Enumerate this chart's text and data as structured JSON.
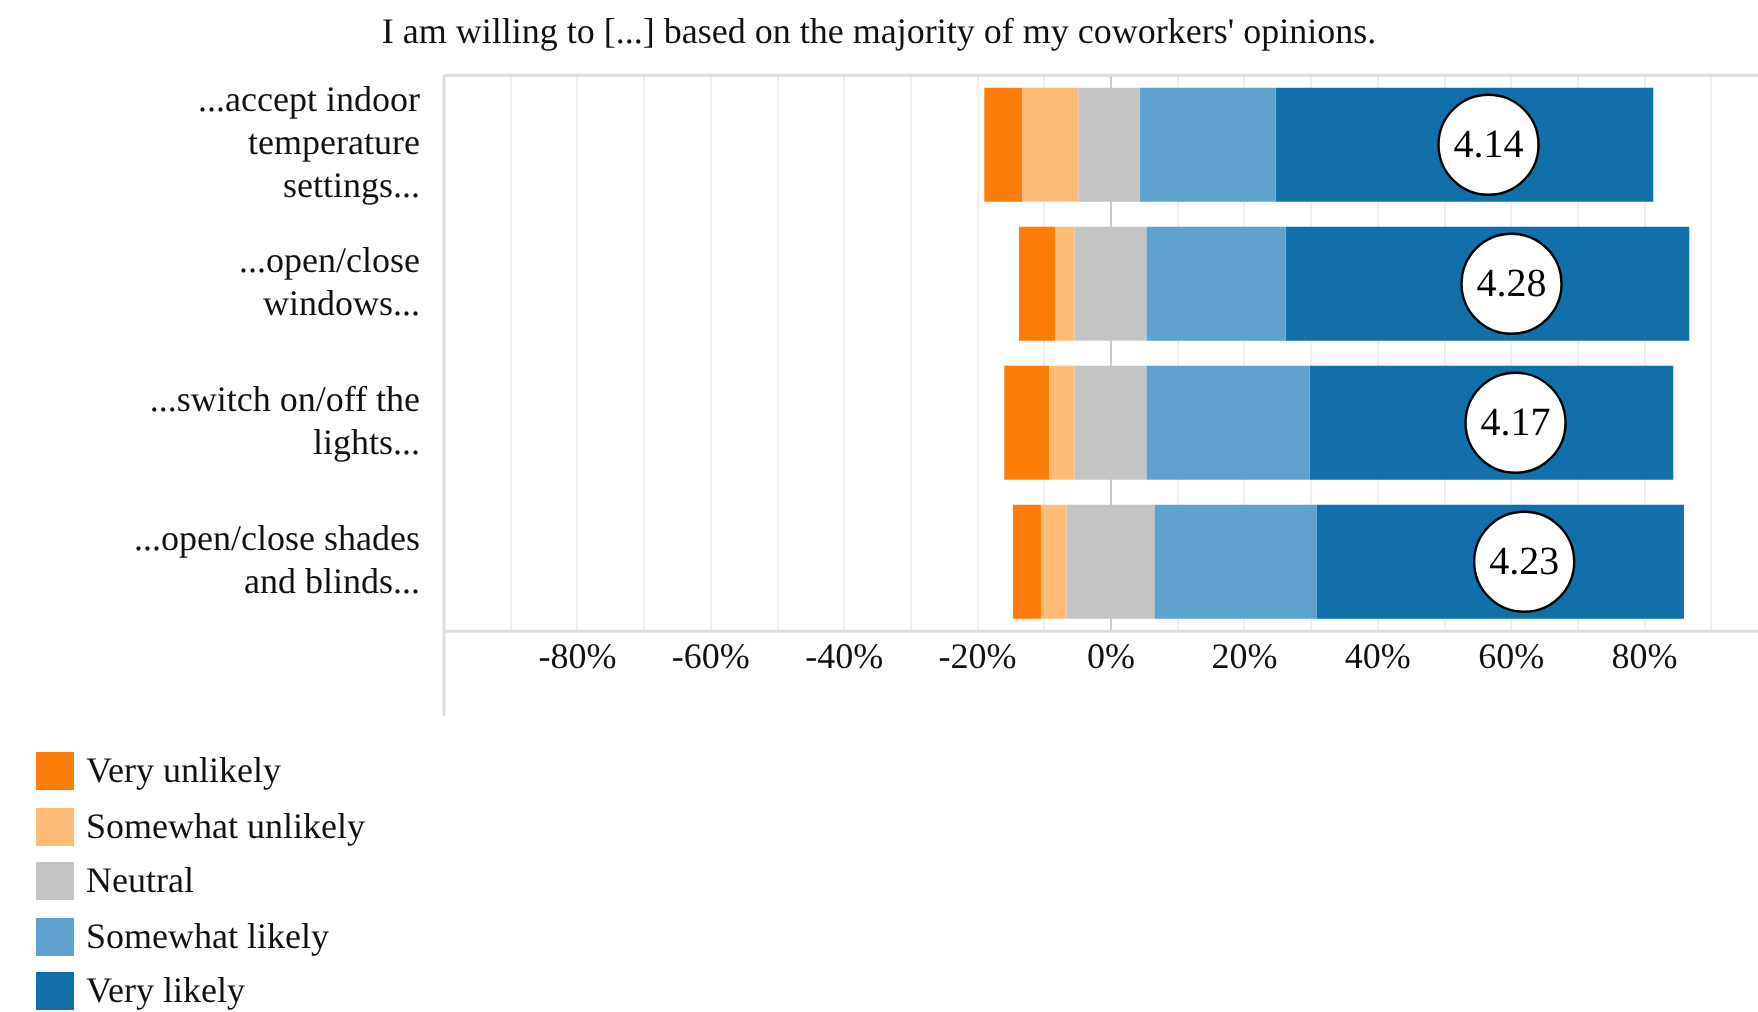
{
  "chart_data": {
    "type": "bar",
    "orientation": "horizontal",
    "title": "I am willing to [...] based on the majority of my coworkers' opinions.",
    "categories": [
      "...accept indoor temperature settings...",
      "...open/close windows...",
      "...switch on/off the lights...",
      "...open/close shades and blinds..."
    ],
    "series": [
      {
        "name": "Very unlikely",
        "color": "#fc7d0b",
        "base": [
          -19.0,
          -13.8,
          -16.0,
          -14.7
        ],
        "values": [
          5.7,
          5.4,
          6.7,
          4.2
        ]
      },
      {
        "name": "Somewhat unlikely",
        "color": "#ffbc79",
        "base": [
          -13.3,
          -8.4,
          -9.3,
          -10.5
        ],
        "values": [
          8.4,
          2.9,
          3.8,
          3.8
        ]
      },
      {
        "name": "Neutral",
        "color": "#c4c4c4",
        "base": [
          -4.9,
          -5.5,
          -5.5,
          -6.7
        ],
        "values": [
          9.2,
          10.8,
          10.8,
          13.2
        ]
      },
      {
        "name": "Somewhat likely",
        "color": "#5fa2ce",
        "base": [
          4.3,
          5.3,
          5.3,
          6.5
        ],
        "values": [
          20.4,
          20.9,
          24.5,
          24.3
        ]
      },
      {
        "name": "Very likely",
        "color": "#1170aa",
        "base": [
          24.7,
          26.2,
          29.8,
          30.8
        ],
        "values": [
          56.6,
          60.5,
          54.5,
          55.1
        ]
      }
    ],
    "xlim": [
      -100,
      97
    ],
    "xticks": [
      {
        "value": -90,
        "label": null
      },
      {
        "value": -80,
        "label": "-80%"
      },
      {
        "value": -70,
        "label": null
      },
      {
        "value": -60,
        "label": "-60%"
      },
      {
        "value": -50,
        "label": null
      },
      {
        "value": -40,
        "label": "-40%"
      },
      {
        "value": -30,
        "label": null
      },
      {
        "value": -20,
        "label": "-20%"
      },
      {
        "value": -10,
        "label": null
      },
      {
        "value": 0,
        "label": "0%"
      },
      {
        "value": 10,
        "label": null
      },
      {
        "value": 20,
        "label": "20%"
      },
      {
        "value": 30,
        "label": null
      },
      {
        "value": 40,
        "label": "40%"
      },
      {
        "value": 50,
        "label": null
      },
      {
        "value": 60,
        "label": "60%"
      },
      {
        "value": 70,
        "label": null
      },
      {
        "value": 80,
        "label": "80%"
      },
      {
        "value": 90,
        "label": null
      }
    ],
    "annotations": [
      "4.14",
      "4.28",
      "4.17",
      "4.23"
    ],
    "grid": "x",
    "legend": "bottom left"
  }
}
